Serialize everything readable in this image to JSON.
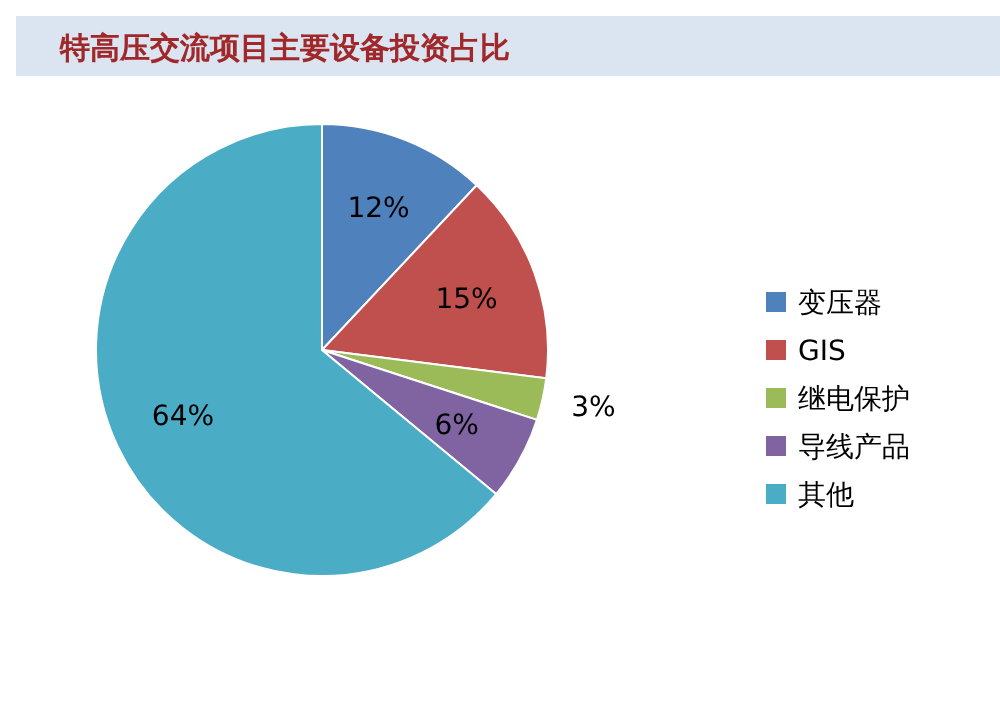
{
  "chart_data": {
    "type": "pie",
    "title": "特高压交流项目主要设备投资占比",
    "categories": [
      "变压器",
      "GIS",
      "继电保护",
      "导线产品",
      "其他"
    ],
    "values": [
      12,
      15,
      3,
      6,
      64
    ],
    "value_labels": [
      "12%",
      "15%",
      "3%",
      "6%",
      "64%"
    ],
    "colors": [
      "#4f81bd",
      "#c0504d",
      "#9bbb59",
      "#8064a2",
      "#4bacc6"
    ],
    "legend": "right"
  }
}
